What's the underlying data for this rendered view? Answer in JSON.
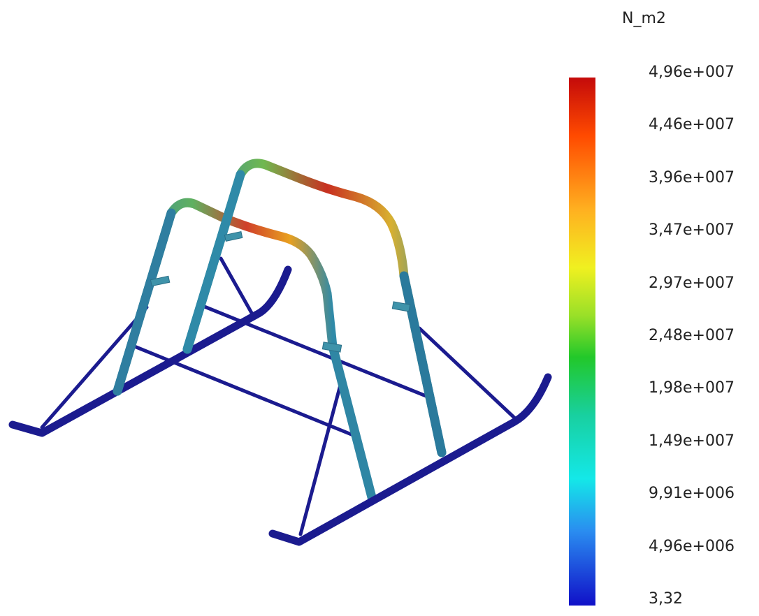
{
  "legend": {
    "unit": "N_m2",
    "ticks": [
      "4,96e+007",
      "4,46e+007",
      "3,96e+007",
      "3,47e+007",
      "2,97e+007",
      "2,48e+007",
      "1,98e+007",
      "1,49e+007",
      "9,91e+006",
      "4,96e+006",
      "3,32"
    ],
    "colors": [
      "#c40a0a",
      "#ff4a00",
      "#ffb020",
      "#f0f020",
      "#9ae028",
      "#22c82a",
      "#18d0a0",
      "#14e8e8",
      "#2a8cf0",
      "#1010c8"
    ]
  },
  "model": {
    "low_stress_color": "#1b1b8f",
    "mid_stress_color": "#2f8aa8",
    "high_stress_color": "#d22a1a"
  }
}
